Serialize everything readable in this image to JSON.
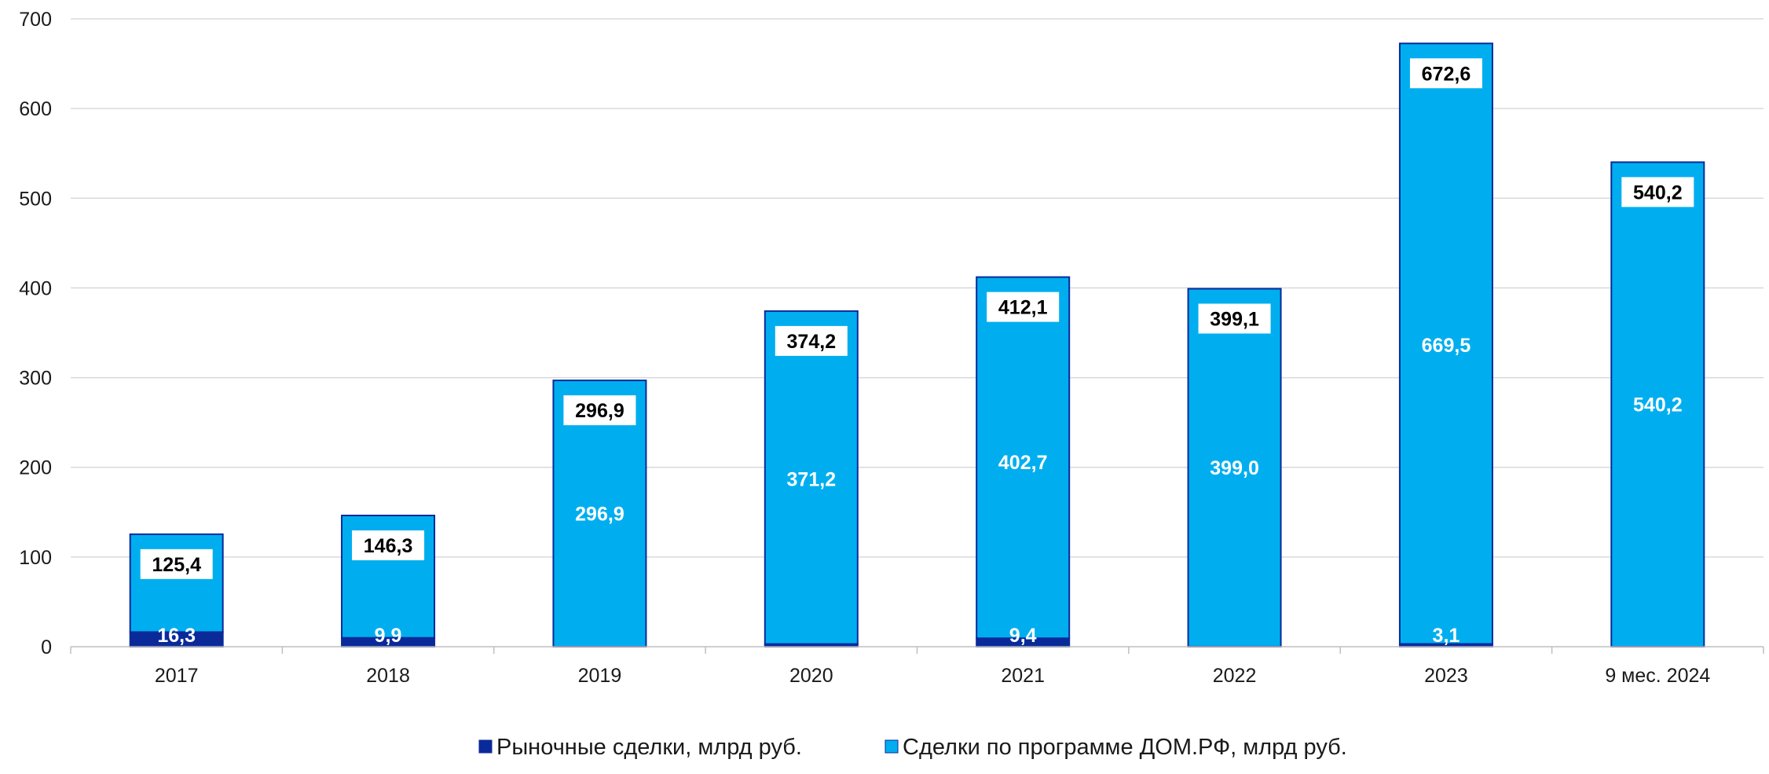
{
  "chart_data": {
    "type": "bar",
    "stacked": true,
    "categories": [
      "2017",
      "2018",
      "2019",
      "2020",
      "2021",
      "2022",
      "2023",
      "9 мес. 2024"
    ],
    "series": [
      {
        "name": "Рыночные сделки, млрд руб.",
        "color": "#0a2a9a",
        "values": [
          16.3,
          9.9,
          0,
          3.0,
          9.4,
          0.1,
          3.1,
          0
        ],
        "labels": [
          "16,3",
          "9,9",
          "",
          "",
          "9,4",
          "",
          "3,1",
          ""
        ]
      },
      {
        "name": "Сделки по программе ДОМ.РФ, млрд руб.",
        "color": "#00aeef",
        "values": [
          109.1,
          136.4,
          296.9,
          371.2,
          402.7,
          399.0,
          669.5,
          540.2
        ],
        "labels": [
          "",
          "",
          "296,9",
          "371,2",
          "402,7",
          "399,0",
          "669,5",
          "540,2"
        ]
      }
    ],
    "totals": [
      125.4,
      146.3,
      296.9,
      374.2,
      412.1,
      399.1,
      672.6,
      540.2
    ],
    "total_labels": [
      "125,4",
      "146,3",
      "296,9",
      "374,2",
      "412,1",
      "399,1",
      "672,6",
      "540,2"
    ],
    "yticks": [
      "0",
      "100",
      "200",
      "300",
      "400",
      "500",
      "600",
      "700"
    ],
    "ylim": [
      0,
      700
    ],
    "grid": true,
    "legend_position": "bottom"
  }
}
